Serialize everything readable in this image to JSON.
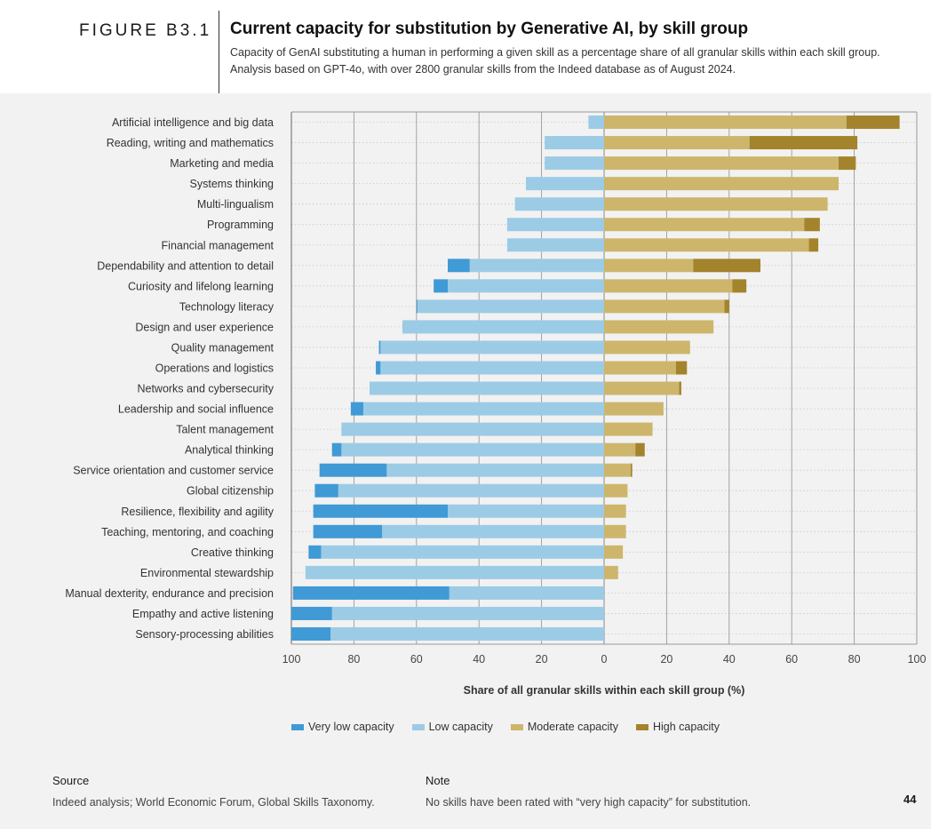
{
  "figure_label": "FIGURE B3.1",
  "title": "Current capacity for substitution by Generative AI, by skill group",
  "subtitle_line1": "Capacity of GenAI substituting a human in performing a given skill as a percentage share of all granular skills within each skill group.",
  "subtitle_line2": "Analysis based on GPT-4o, with over 2800 granular skills from the Indeed database as of August 2024.",
  "source_title": "Source",
  "source_text": "Indeed analysis; World Economic Forum, Global Skills Taxonomy.",
  "note_title": "Note",
  "note_text": "No skills have been rated with “very high capacity” for substitution.",
  "page_number": "44",
  "colors": {
    "very_low": "#3f9ad6",
    "low": "#9ccbe6",
    "moderate": "#cdb66c",
    "high": "#a3842c",
    "grid": "#999999",
    "background": "#f2f2f2"
  },
  "chart_data": {
    "type": "bar",
    "orientation": "horizontal-diverging",
    "title": "Current capacity for substitution by Generative AI, by skill group",
    "xlabel": "Share of all granular skills within each skill group (%)",
    "xlim": [
      -100,
      100
    ],
    "xticks": [
      -100,
      -80,
      -60,
      -40,
      -20,
      0,
      20,
      40,
      60,
      80,
      100
    ],
    "xtick_labels": [
      "100",
      "80",
      "60",
      "40",
      "20",
      "0",
      "20",
      "40",
      "60",
      "80",
      "100"
    ],
    "categories": [
      "Artificial intelligence and big data",
      "Reading, writing and mathematics",
      "Marketing and media",
      "Systems thinking",
      "Multi-lingualism",
      "Programming",
      "Financial management",
      "Dependability and attention to detail",
      "Curiosity and lifelong learning",
      "Technology literacy",
      "Design and user experience",
      "Quality management",
      "Operations and logistics",
      "Networks and cybersecurity",
      "Leadership and social influence",
      "Talent management",
      "Analytical thinking",
      "Service orientation and customer service",
      "Global citizenship",
      "Resilience, flexibility and agility",
      "Teaching, mentoring, and coaching",
      "Creative thinking",
      "Environmental stewardship",
      "Manual dexterity, endurance and precision",
      "Empathy and active listening",
      "Sensory-processing abilities"
    ],
    "series": [
      {
        "name": "Very low capacity",
        "key": "very_low",
        "side": "left",
        "values": [
          0,
          0,
          0,
          0,
          0,
          0,
          0,
          7,
          4.5,
          0.3,
          0,
          0.5,
          1.5,
          0,
          4,
          0,
          3,
          21.5,
          7.5,
          43,
          22,
          4,
          0,
          50,
          13,
          12.5
        ]
      },
      {
        "name": "Low capacity",
        "key": "low",
        "side": "left",
        "values": [
          5,
          19,
          19,
          25,
          28.5,
          31,
          31,
          43,
          50,
          59.7,
          64.5,
          71.5,
          71.5,
          75,
          77,
          84,
          84,
          69.5,
          85,
          50,
          71,
          90.5,
          95.5,
          49.5,
          87,
          87.5
        ]
      },
      {
        "name": "Moderate capacity",
        "key": "moderate",
        "side": "right",
        "values": [
          77.5,
          46.5,
          75,
          75,
          71.5,
          64,
          65.5,
          28.5,
          41,
          38.5,
          35,
          27.5,
          23,
          24,
          19,
          15.5,
          10,
          8.5,
          7.5,
          7,
          7,
          6,
          4.5,
          0,
          0,
          0
        ]
      },
      {
        "name": "High capacity",
        "key": "high",
        "side": "right",
        "values": [
          17,
          34.5,
          5.5,
          0,
          0,
          5,
          3,
          21.5,
          4.5,
          1.5,
          0,
          0,
          3.5,
          0.7,
          0,
          0,
          3,
          0.5,
          0,
          0,
          0,
          0,
          0,
          0,
          0,
          0
        ]
      }
    ],
    "legend": [
      "Very low capacity",
      "Low capacity",
      "Moderate capacity",
      "High capacity"
    ],
    "legend_position": "bottom",
    "grid": true
  }
}
